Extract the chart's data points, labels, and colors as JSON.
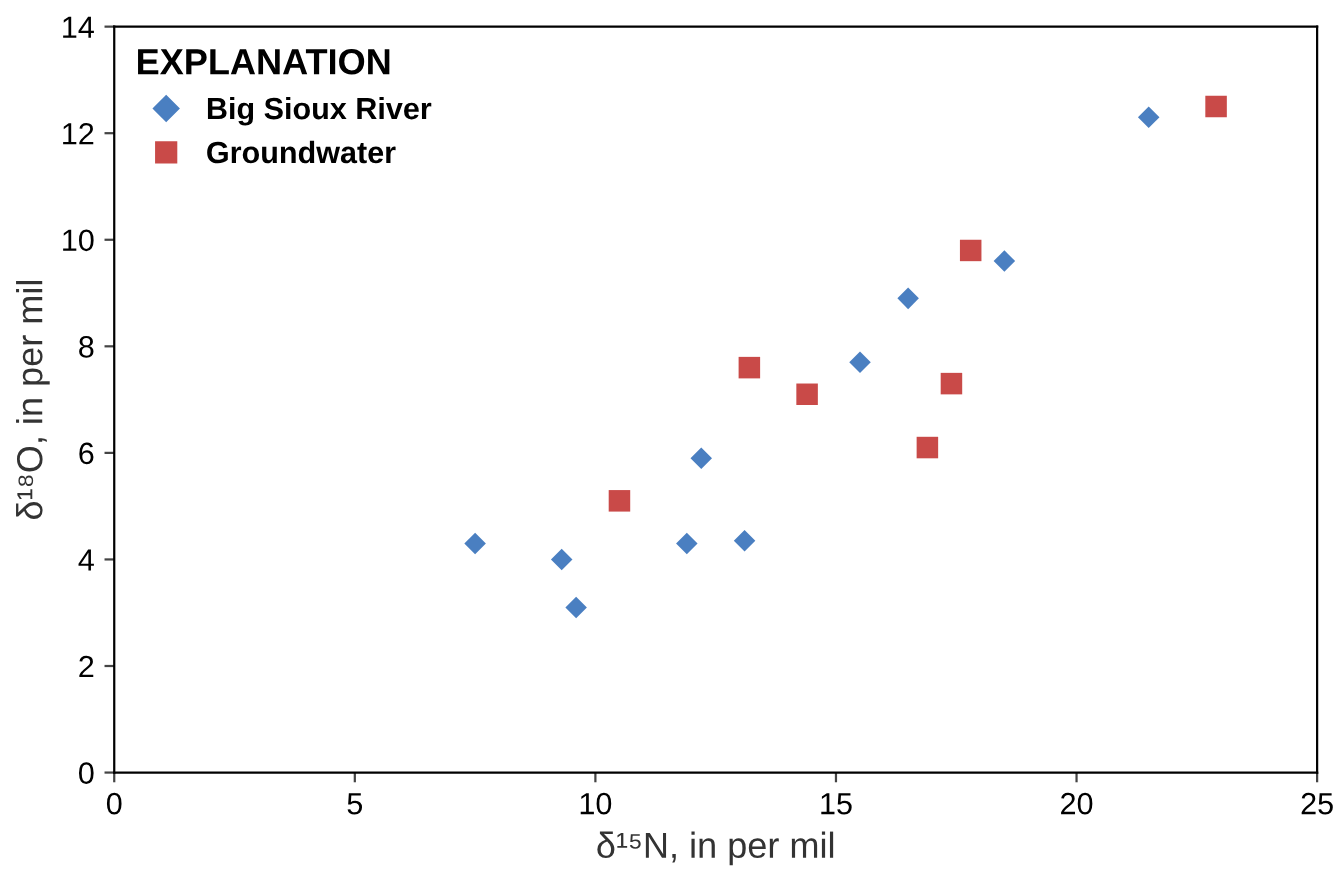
{
  "chart_data": {
    "type": "scatter",
    "xlabel": "δ¹⁵N, in per mil",
    "ylabel": "δ¹⁸O, in per mil",
    "legend_title": "EXPLANATION",
    "legend": "top left",
    "grid": false,
    "xlim": [
      0,
      25
    ],
    "xticks": [
      0,
      5,
      10,
      15,
      20,
      25
    ],
    "ylim": [
      0,
      14
    ],
    "yticks": [
      0,
      2,
      4,
      6,
      8,
      10,
      12,
      14
    ],
    "series": [
      {
        "name": "Big Sioux River",
        "color": "#4a7fc1",
        "marker": "diamond",
        "x": [
          7.5,
          9.3,
          9.6,
          11.9,
          12.2,
          13.1,
          15.5,
          16.5,
          18.5,
          21.5
        ],
        "values": [
          4.3,
          4.0,
          3.1,
          4.3,
          5.9,
          4.35,
          7.7,
          8.9,
          9.6,
          12.3
        ]
      },
      {
        "name": "Groundwater",
        "color": "#c94a48",
        "marker": "square",
        "x": [
          10.5,
          13.2,
          14.4,
          16.9,
          17.4,
          17.8,
          22.9
        ],
        "values": [
          5.1,
          7.6,
          7.1,
          6.1,
          7.3,
          9.8,
          12.5
        ]
      }
    ]
  }
}
